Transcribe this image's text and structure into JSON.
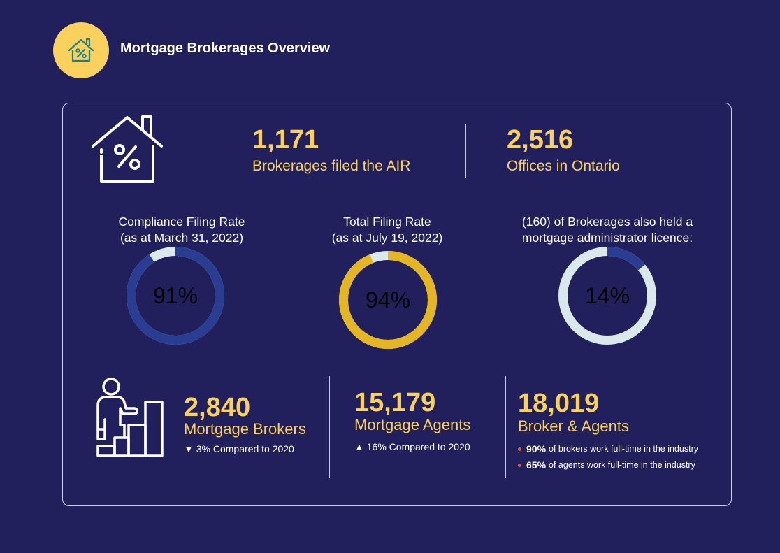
{
  "header": {
    "title": "Mortgage Brokerages Overview",
    "icon": "house-percent-icon"
  },
  "stats_top": [
    {
      "value": "1,171",
      "label": "Brokerages filed the AIR"
    },
    {
      "value": "2,516",
      "label": "Offices in Ontario"
    }
  ],
  "rings": [
    {
      "caption_line1": "Compliance Filing Rate",
      "caption_line2": "(as at March 31, 2022)",
      "value_text": "91%",
      "percent": 91,
      "fill_color": "#293d93",
      "rest_color": "#dbe8ea"
    },
    {
      "caption_line1": "Total Filing Rate",
      "caption_line2": "(as at July 19, 2022)",
      "value_text": "94%",
      "percent": 94,
      "fill_color": "#e5b623",
      "rest_color": "#dbe8ea"
    },
    {
      "caption_line1": "(160) of Brokerages also held a",
      "caption_line2": "mortgage administrator licence:",
      "value_text": "14%",
      "percent": 14,
      "fill_color": "#293d93",
      "rest_color": "#dbe8ea"
    }
  ],
  "stats_bottom": [
    {
      "value": "2,840",
      "label": "Mortgage Brokers",
      "change": "▼ 3% Compared to 2020"
    },
    {
      "value": "15,179",
      "label": "Mortgage Agents",
      "change": "▲ 16% Compared to 2020"
    },
    {
      "value": "18,019",
      "label": "Broker & Agents",
      "bullets": [
        {
          "pct": "90%",
          "text": "of brokers work full-time in the industry"
        },
        {
          "pct": "65%",
          "text": "of agents work full-time in the industry"
        }
      ]
    }
  ],
  "colors": {
    "background": "#22205c",
    "accent_yellow": "#f9d15c",
    "ring_blue": "#293d93",
    "ring_gold": "#e5b623",
    "ring_light": "#dbe8ea",
    "bullet_red": "#e35b3a"
  },
  "chart_data": [
    {
      "type": "pie",
      "title": "Compliance Filing Rate",
      "subtitle": "(as at March 31, 2022)",
      "values": [
        91,
        9
      ]
    },
    {
      "type": "pie",
      "title": "Total Filing Rate",
      "subtitle": "(as at July 19, 2022)",
      "values": [
        94,
        6
      ]
    },
    {
      "type": "pie",
      "title": "(160) of Brokerages also held a mortgage administrator licence:",
      "values": [
        14,
        86
      ]
    }
  ]
}
